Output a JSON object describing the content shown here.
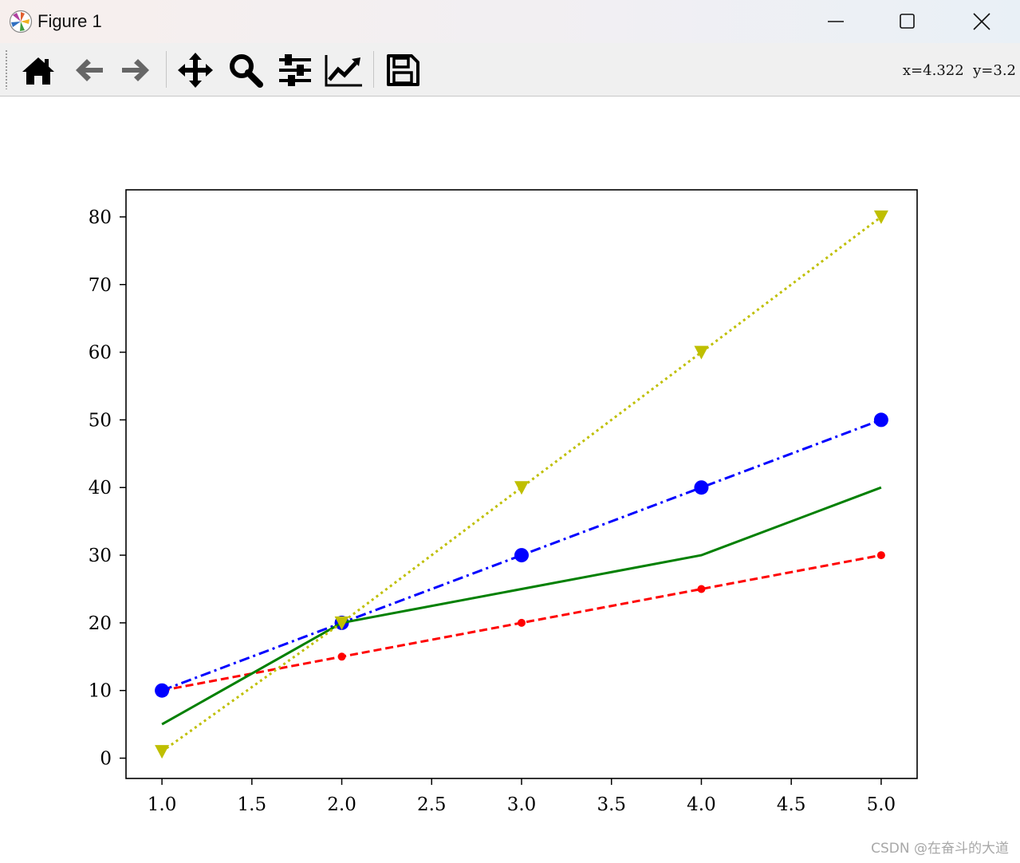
{
  "window": {
    "title": "Figure 1",
    "icon": "matplotlib-logo-icon",
    "controls": [
      "minimize-icon",
      "maximize-icon",
      "close-icon"
    ]
  },
  "toolbar": {
    "buttons": [
      "home-icon",
      "back-arrow-icon",
      "forward-arrow-icon",
      "pan-move-icon",
      "zoom-magnifier-icon",
      "subplots-config-icon",
      "edit-axis-curves-icon",
      "save-figure-icon"
    ],
    "coordinate_readout": "x=4.322  y=3.2"
  },
  "watermark": "CSDN @在奋斗的大道",
  "chart_data": {
    "type": "line",
    "x": [
      1,
      2,
      3,
      4,
      5
    ],
    "xlim": [
      0.8,
      5.2
    ],
    "ylim": [
      -3,
      84
    ],
    "xticks": [
      "1.0",
      "1.5",
      "2.0",
      "2.5",
      "3.0",
      "3.5",
      "4.0",
      "4.5",
      "5.0"
    ],
    "yticks": [
      "0",
      "10",
      "20",
      "30",
      "40",
      "50",
      "60",
      "70",
      "80"
    ],
    "grid": false,
    "series": [
      {
        "values": [
          10,
          15,
          20,
          25,
          30
        ],
        "color": "#ff0000",
        "linestyle": "dashed",
        "marker": "point"
      },
      {
        "values": [
          10,
          20,
          30,
          40,
          50
        ],
        "color": "#0000ff",
        "linestyle": "dashdot",
        "marker": "circle"
      },
      {
        "values": [
          5,
          20,
          25,
          30,
          40
        ],
        "color": "#008000",
        "linestyle": "solid",
        "marker": "none"
      },
      {
        "values": [
          1,
          20,
          40,
          60,
          80
        ],
        "color": "#bfbf00",
        "linestyle": "dotted",
        "marker": "triangle-down"
      }
    ]
  }
}
